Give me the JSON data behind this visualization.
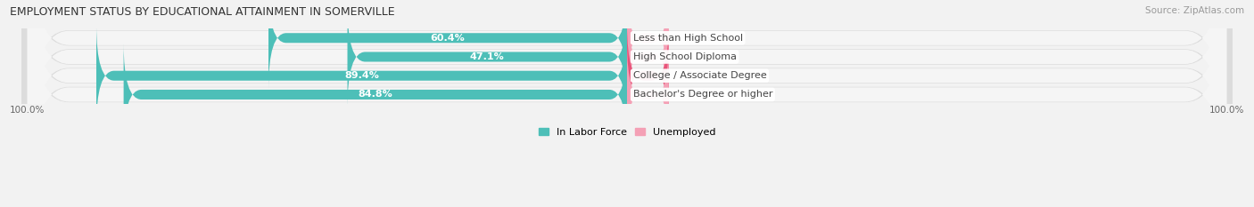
{
  "title": "EMPLOYMENT STATUS BY EDUCATIONAL ATTAINMENT IN SOMERVILLE",
  "source": "Source: ZipAtlas.com",
  "categories": [
    "Less than High School",
    "High School Diploma",
    "College / Associate Degree",
    "Bachelor's Degree or higher"
  ],
  "labor_force": [
    60.4,
    47.1,
    89.4,
    84.8
  ],
  "unemployed": [
    0.0,
    0.0,
    3.0,
    0.0
  ],
  "labor_force_color": "#4dbfb8",
  "unemployed_color_light": "#f4a0b5",
  "unemployed_color_dark": "#e8547a",
  "row_bg_color": "#e8e8e8",
  "row_inner_color": "#f5f5f5",
  "axis_label_left": "100.0%",
  "axis_label_right": "100.0%",
  "legend_labor": "In Labor Force",
  "legend_unemployed": "Unemployed",
  "title_fontsize": 9,
  "source_fontsize": 7.5,
  "bar_label_fontsize": 8,
  "category_fontsize": 8,
  "legend_fontsize": 8,
  "xlim_left": -105,
  "xlim_right": 105,
  "unemp_bar_width": 7
}
